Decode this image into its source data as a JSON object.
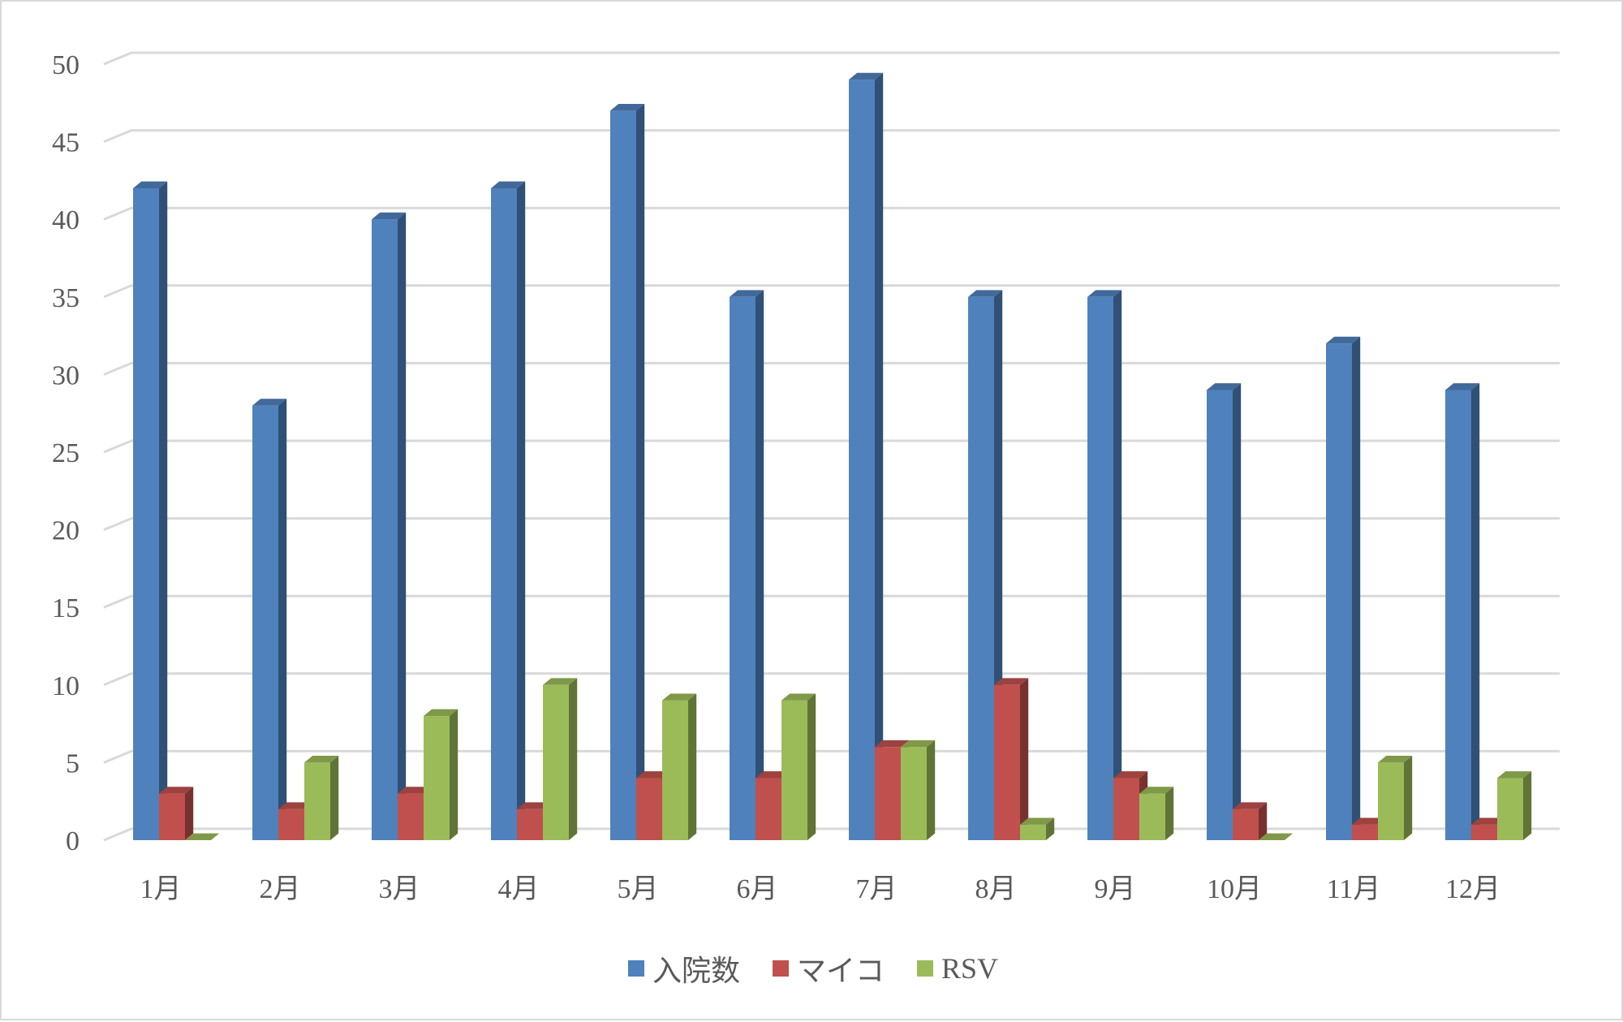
{
  "chart_data": {
    "type": "bar",
    "categories": [
      "1月",
      "2月",
      "3月",
      "4月",
      "5月",
      "6月",
      "7月",
      "8月",
      "9月",
      "10月",
      "11月",
      "12月"
    ],
    "series": [
      {
        "name": "入院数",
        "values": [
          42,
          28,
          40,
          42,
          47,
          35,
          49,
          35,
          35,
          29,
          32,
          29
        ],
        "color": "#4f81bd"
      },
      {
        "name": "マイコ",
        "values": [
          3,
          2,
          3,
          2,
          4,
          4,
          6,
          10,
          4,
          2,
          1,
          1
        ],
        "color": "#c0504d"
      },
      {
        "name": "RSV",
        "values": [
          0,
          5,
          8,
          10,
          9,
          9,
          6,
          1,
          3,
          0,
          5,
          4
        ],
        "color": "#9bbb59"
      }
    ],
    "ylim": [
      0,
      50
    ],
    "yticks": [
      0,
      5,
      10,
      15,
      20,
      25,
      30,
      35,
      40,
      45,
      50
    ],
    "grid": true,
    "legend": "bottom"
  }
}
